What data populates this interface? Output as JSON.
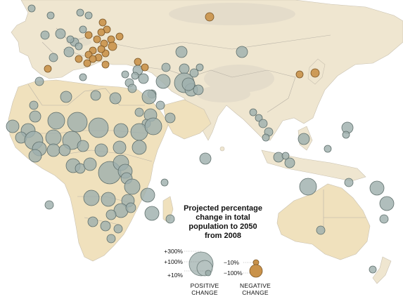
{
  "legend": {
    "title_lines": [
      "Projected percentage",
      "change in total",
      "population to 2050",
      "from 2008"
    ],
    "positive_scale": [
      "+300%",
      "+100%",
      "+10%"
    ],
    "negative_scale": [
      "−10%",
      "−100%"
    ],
    "positive_caption": [
      "POSITIVE",
      "CHANGE"
    ],
    "negative_caption": [
      "NEGATIVE",
      "CHANGE"
    ]
  },
  "colors": {
    "ocean": "#ffffff",
    "land": "#efe6d0",
    "land_light": "#f3eee2",
    "desert": "#f0e1bd",
    "border": "#b8b2a6",
    "positive_fill": "#9fb0ad",
    "positive_stroke": "#5f6f6c",
    "negative_fill": "#c9924a",
    "negative_stroke": "#7a5526"
  }
}
